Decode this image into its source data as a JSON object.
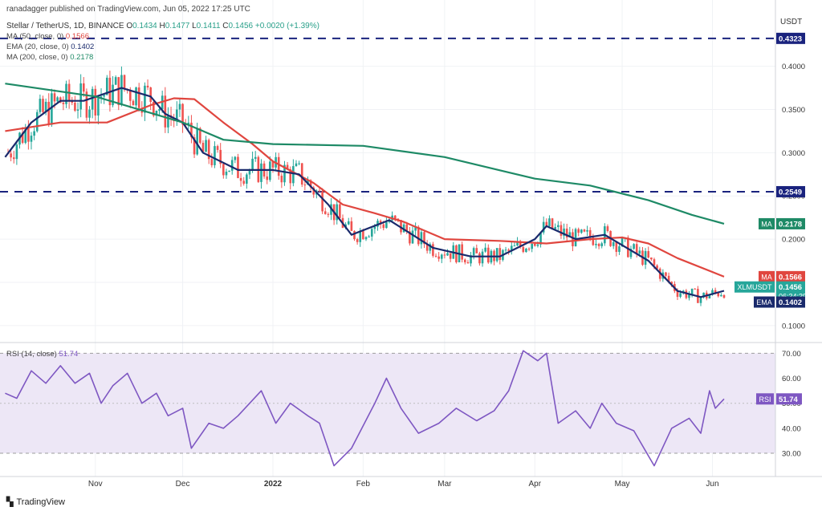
{
  "header": {
    "publisher": "ranadagger published on TradingView.com, Jun 05, 2022 17:25 UTC",
    "symbol": "Stellar / TetherUS, 1D, BINANCE",
    "open_label": "O",
    "open": "0.1434",
    "high_label": "H",
    "high": "0.1477",
    "low_label": "L",
    "low": "0.1411",
    "close_label": "C",
    "close": "0.1456",
    "change": "+0.0020 (+1.39%)"
  },
  "indicators": {
    "ma50_label": "MA (50, close, 0)",
    "ma50_value": "0.1566",
    "ema20_label": "EMA (20, close, 0)",
    "ema20_value": "0.1402",
    "ma200_label": "MA (200, close, 0)",
    "ma200_value": "0.2178",
    "rsi_label": "RSI (14, close)",
    "rsi_value": "51.74"
  },
  "branding": "TradingView",
  "colors": {
    "up": "#26a69a",
    "down": "#ef5350",
    "ema20": "#1a2a6c",
    "ma50": "#e0463f",
    "ma200": "#1e8a66",
    "rsi": "#7e57c2",
    "rsi_band": "#ede7f6",
    "level": "#1a237e"
  },
  "chart_data": [
    {
      "type": "candlestick",
      "title": "Stellar / TetherUS, 1D, BINANCE",
      "y_unit": "USDT",
      "ylim": [
        0.085,
        0.46
      ],
      "y_ticks": [
        "0.4000",
        "0.3500",
        "0.3000",
        "0.2500",
        "0.2000",
        "0.1500",
        "0.1000"
      ],
      "x_tick_labels": [
        "Nov",
        "Dec",
        "2022",
        "Feb",
        "Mar",
        "Apr",
        "May",
        "Jun"
      ],
      "price_labels": [
        {
          "text": "0.4323",
          "value": 0.4323,
          "color": "#1a237e"
        },
        {
          "text": "0.2549",
          "value": 0.2549,
          "color": "#1a237e"
        },
        {
          "text": "0.2178",
          "value": 0.2178,
          "color": "#1e8a66",
          "tag": "MA"
        },
        {
          "text": "0.1566",
          "value": 0.1566,
          "color": "#e0463f",
          "tag": "MA"
        },
        {
          "text": "0.1456",
          "value": 0.1456,
          "color": "#26a69a",
          "tag": "XLMUSDT",
          "sub": "06:34:39"
        },
        {
          "text": "0.1402",
          "value": 0.1402,
          "color": "#1a2a6c",
          "tag": "EMA"
        }
      ],
      "horizontal_levels": [
        0.4323,
        0.2549
      ],
      "series": [
        {
          "name": "MA (50, close, 0)",
          "values": [
            [
              "2021-10-01",
              0.325
            ],
            [
              "2021-10-20",
              0.335
            ],
            [
              "2021-11-05",
              0.335
            ],
            [
              "2021-11-20",
              0.355
            ],
            [
              "2021-11-28",
              0.363
            ],
            [
              "2021-12-05",
              0.362
            ],
            [
              "2021-12-15",
              0.335
            ],
            [
              "2021-12-25",
              0.31
            ],
            [
              "2022-01-01",
              0.29
            ],
            [
              "2022-01-15",
              0.265
            ],
            [
              "2022-01-25",
              0.24
            ],
            [
              "2022-02-05",
              0.23
            ],
            [
              "2022-02-15",
              0.22
            ],
            [
              "2022-03-01",
              0.2
            ],
            [
              "2022-03-20",
              0.198
            ],
            [
              "2022-04-05",
              0.195
            ],
            [
              "2022-04-20",
              0.2
            ],
            [
              "2022-05-01",
              0.202
            ],
            [
              "2022-05-10",
              0.195
            ],
            [
              "2022-05-20",
              0.178
            ],
            [
              "2022-06-05",
              0.1566
            ]
          ]
        },
        {
          "name": "EMA (20, close, 0)",
          "values": [
            [
              "2021-10-01",
              0.295
            ],
            [
              "2021-10-10",
              0.335
            ],
            [
              "2021-10-20",
              0.36
            ],
            [
              "2021-10-28",
              0.36
            ],
            [
              "2021-11-10",
              0.375
            ],
            [
              "2021-11-20",
              0.365
            ],
            [
              "2021-11-25",
              0.345
            ],
            [
              "2021-12-01",
              0.335
            ],
            [
              "2021-12-08",
              0.3
            ],
            [
              "2021-12-20",
              0.28
            ],
            [
              "2022-01-01",
              0.28
            ],
            [
              "2022-01-10",
              0.275
            ],
            [
              "2022-01-20",
              0.24
            ],
            [
              "2022-01-28",
              0.205
            ],
            [
              "2022-02-10",
              0.222
            ],
            [
              "2022-02-25",
              0.19
            ],
            [
              "2022-03-10",
              0.18
            ],
            [
              "2022-03-20",
              0.18
            ],
            [
              "2022-04-01",
              0.2
            ],
            [
              "2022-04-05",
              0.215
            ],
            [
              "2022-04-15",
              0.2
            ],
            [
              "2022-04-25",
              0.205
            ],
            [
              "2022-05-10",
              0.175
            ],
            [
              "2022-05-20",
              0.14
            ],
            [
              "2022-05-28",
              0.133
            ],
            [
              "2022-06-05",
              0.1402
            ]
          ]
        },
        {
          "name": "MA (200, close, 0)",
          "values": [
            [
              "2021-10-01",
              0.38
            ],
            [
              "2021-11-01",
              0.365
            ],
            [
              "2021-12-01",
              0.335
            ],
            [
              "2021-12-15",
              0.315
            ],
            [
              "2022-01-01",
              0.31
            ],
            [
              "2022-02-01",
              0.308
            ],
            [
              "2022-03-01",
              0.295
            ],
            [
              "2022-04-01",
              0.27
            ],
            [
              "2022-04-20",
              0.262
            ],
            [
              "2022-05-10",
              0.245
            ],
            [
              "2022-05-25",
              0.228
            ],
            [
              "2022-06-05",
              0.2178
            ]
          ]
        }
      ]
    },
    {
      "type": "line",
      "title": "RSI (14, close)",
      "ylim": [
        22,
        73
      ],
      "y_ticks": [
        "70.00",
        "60.00",
        "50.00",
        "40.00",
        "30.00"
      ],
      "bands": [
        30,
        70
      ],
      "series": [
        {
          "name": "RSI (14, close)",
          "values": [
            [
              "2021-10-01",
              54
            ],
            [
              "2021-10-05",
              52
            ],
            [
              "2021-10-10",
              63
            ],
            [
              "2021-10-15",
              58
            ],
            [
              "2021-10-20",
              65
            ],
            [
              "2021-10-25",
              58
            ],
            [
              "2021-10-30",
              62
            ],
            [
              "2021-11-03",
              50
            ],
            [
              "2021-11-07",
              57
            ],
            [
              "2021-11-12",
              62
            ],
            [
              "2021-11-17",
              50
            ],
            [
              "2021-11-22",
              54
            ],
            [
              "2021-11-26",
              45
            ],
            [
              "2021-12-01",
              48
            ],
            [
              "2021-12-04",
              32
            ],
            [
              "2021-12-10",
              42
            ],
            [
              "2021-12-15",
              40
            ],
            [
              "2021-12-20",
              45
            ],
            [
              "2021-12-28",
              55
            ],
            [
              "2022-01-02",
              42
            ],
            [
              "2022-01-07",
              50
            ],
            [
              "2022-01-13",
              45
            ],
            [
              "2022-01-17",
              42
            ],
            [
              "2022-01-22",
              25
            ],
            [
              "2022-01-28",
              32
            ],
            [
              "2022-02-05",
              50
            ],
            [
              "2022-02-09",
              60
            ],
            [
              "2022-02-14",
              48
            ],
            [
              "2022-02-20",
              38
            ],
            [
              "2022-02-27",
              42
            ],
            [
              "2022-03-05",
              48
            ],
            [
              "2022-03-12",
              43
            ],
            [
              "2022-03-18",
              47
            ],
            [
              "2022-03-23",
              55
            ],
            [
              "2022-03-28",
              71
            ],
            [
              "2022-04-02",
              67
            ],
            [
              "2022-04-05",
              70
            ],
            [
              "2022-04-09",
              42
            ],
            [
              "2022-04-15",
              47
            ],
            [
              "2022-04-20",
              40
            ],
            [
              "2022-04-24",
              50
            ],
            [
              "2022-04-29",
              42
            ],
            [
              "2022-05-05",
              39
            ],
            [
              "2022-05-10",
              29
            ],
            [
              "2022-05-12",
              25
            ],
            [
              "2022-05-18",
              40
            ],
            [
              "2022-05-24",
              44
            ],
            [
              "2022-05-28",
              38
            ],
            [
              "2022-05-31",
              55
            ],
            [
              "2022-06-02",
              48
            ],
            [
              "2022-06-05",
              51.74
            ]
          ]
        }
      ]
    }
  ]
}
